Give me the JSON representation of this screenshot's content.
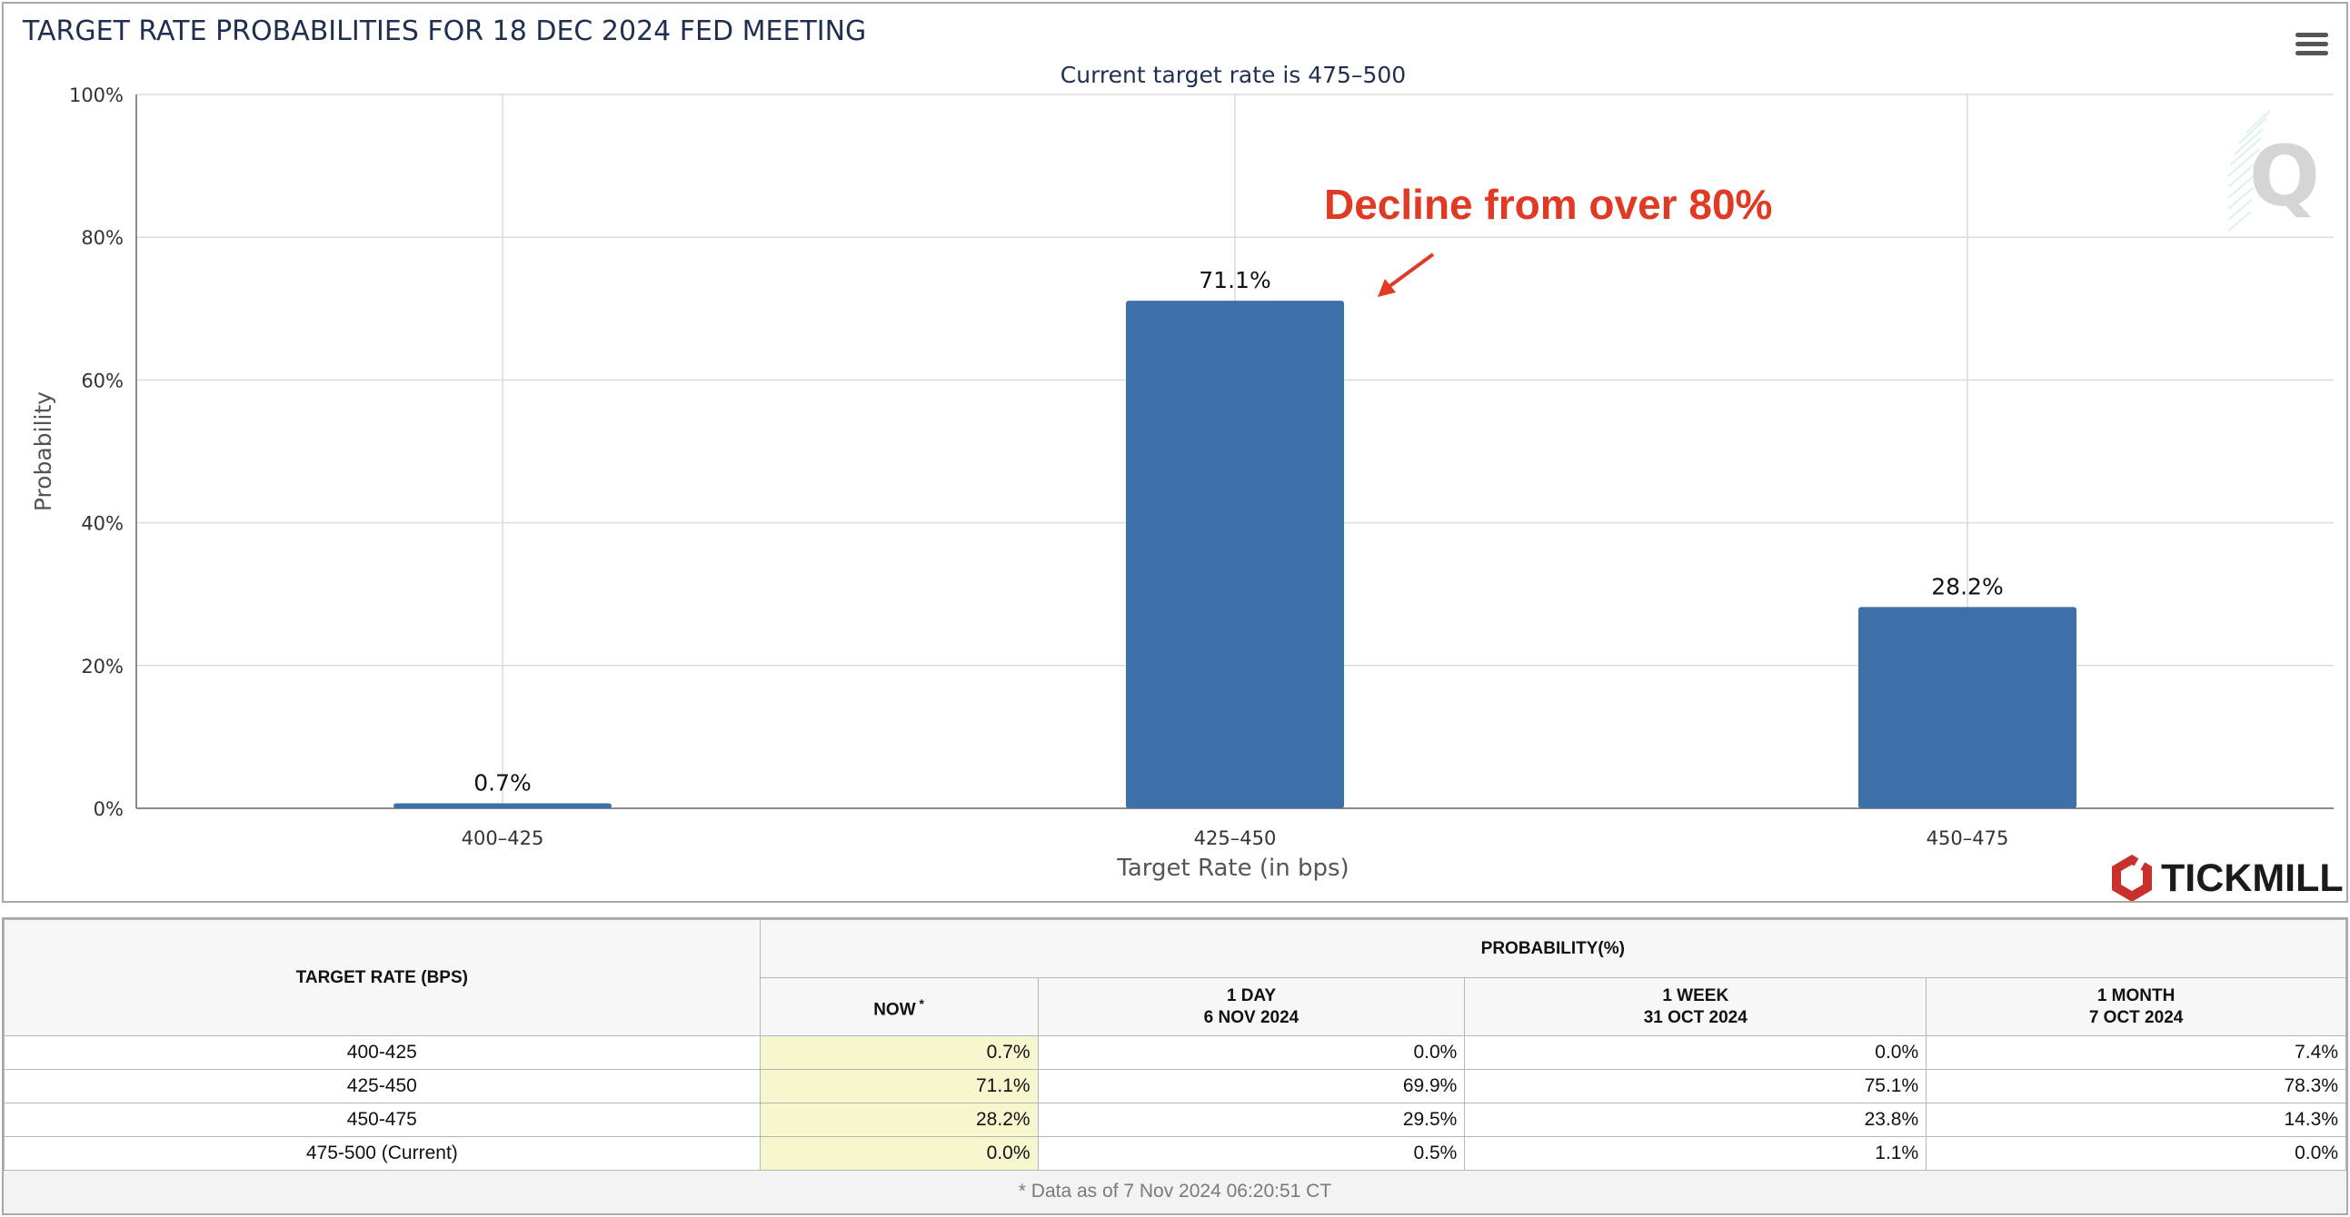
{
  "chart_data": {
    "type": "bar",
    "title": "TARGET RATE PROBABILITIES FOR 18 DEC 2024 FED MEETING",
    "subtitle": "Current target rate is 475–500",
    "xlabel": "Target Rate (in bps)",
    "ylabel": "Probability",
    "categories": [
      "400–425",
      "425–450",
      "450–475"
    ],
    "values": [
      0.7,
      71.1,
      28.2
    ],
    "data_labels": [
      "0.7%",
      "71.1%",
      "28.2%"
    ],
    "ylim": [
      0,
      100
    ],
    "yticks": [
      0,
      20,
      40,
      60,
      80,
      100
    ],
    "ytick_labels": [
      "0%",
      "20%",
      "40%",
      "60%",
      "80%",
      "100%"
    ],
    "grid": true,
    "bar_color": "#3d6fa8",
    "annotation": {
      "text": "Decline from over 80%",
      "color": "#e03a24",
      "points_to_category": "425–450"
    }
  },
  "watermark": {
    "letter": "Q"
  },
  "brand": {
    "name": "TICKMILL",
    "logo_color": "#c9302c"
  },
  "menu": {
    "icon": "hamburger-menu-icon"
  },
  "table": {
    "header_rate": "TARGET RATE (BPS)",
    "header_probability": "PROBABILITY(%)",
    "columns": [
      {
        "line1": "NOW",
        "line2": "",
        "marker": "*"
      },
      {
        "line1": "1 DAY",
        "line2": "6 NOV 2024",
        "marker": ""
      },
      {
        "line1": "1 WEEK",
        "line2": "31 OCT 2024",
        "marker": ""
      },
      {
        "line1": "1 MONTH",
        "line2": "7 OCT 2024",
        "marker": ""
      }
    ],
    "rows": [
      {
        "rate": "400-425",
        "values": [
          "0.7%",
          "0.0%",
          "0.0%",
          "7.4%"
        ]
      },
      {
        "rate": "425-450",
        "values": [
          "71.1%",
          "69.9%",
          "75.1%",
          "78.3%"
        ]
      },
      {
        "rate": "450-475",
        "values": [
          "28.2%",
          "29.5%",
          "23.8%",
          "14.3%"
        ]
      },
      {
        "rate": "475-500 (Current)",
        "values": [
          "0.0%",
          "0.5%",
          "1.1%",
          "0.0%"
        ]
      }
    ],
    "footnote": "* Data as of 7 Nov 2024 06:20:51 CT"
  }
}
